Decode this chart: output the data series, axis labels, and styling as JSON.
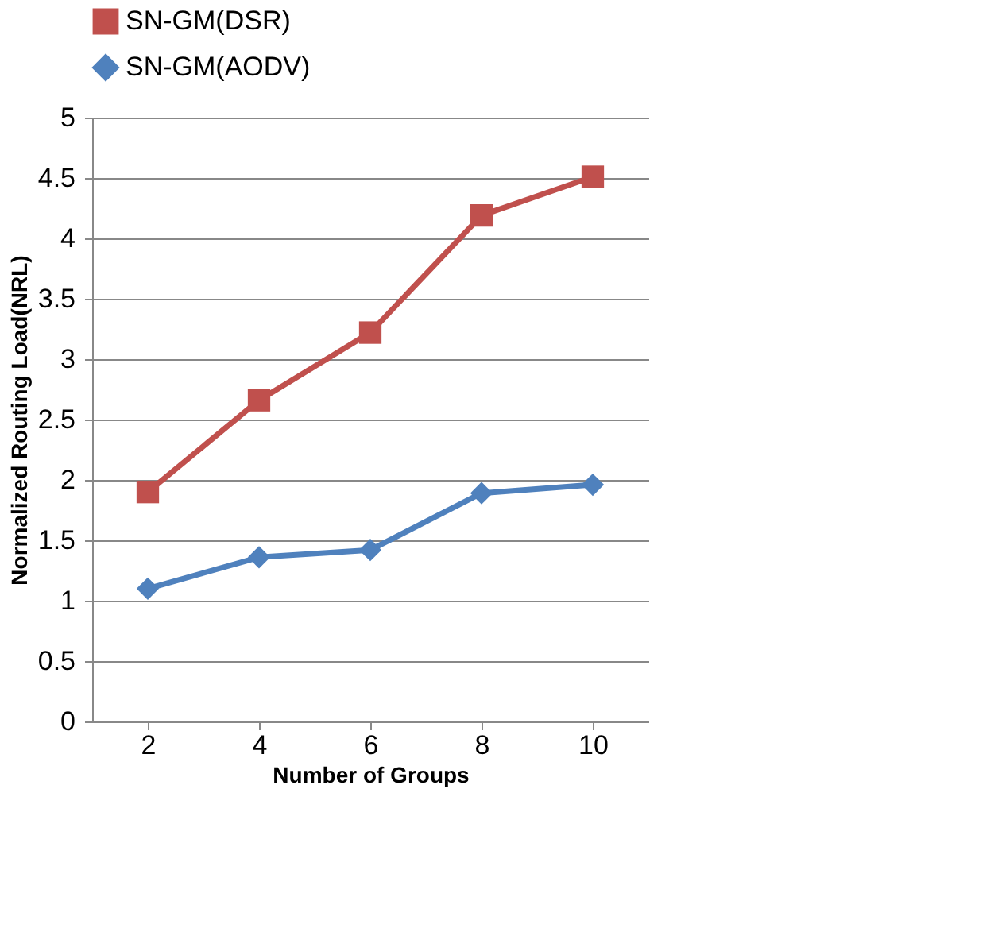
{
  "chart_data": {
    "type": "line",
    "xlabel": "Number of Groups",
    "ylabel": "Normalized Routing Load(NRL)",
    "categories": [
      "2",
      "4",
      "6",
      "8",
      "10"
    ],
    "series": [
      {
        "name": "SN-GM(DSR)",
        "color": "#c0504d",
        "marker": "square",
        "values": [
          1.9,
          2.66,
          3.22,
          4.19,
          4.51
        ]
      },
      {
        "name": "SN-GM(AODV)",
        "color": "#4f81bd",
        "marker": "diamond",
        "values": [
          1.1,
          1.36,
          1.42,
          1.89,
          1.96
        ]
      }
    ],
    "ylim": [
      0,
      5
    ],
    "yticks": [
      0,
      0.5,
      1,
      1.5,
      2,
      2.5,
      3,
      3.5,
      4,
      4.5,
      5
    ],
    "grid": "y",
    "legend": "top",
    "line_style": "solid"
  }
}
